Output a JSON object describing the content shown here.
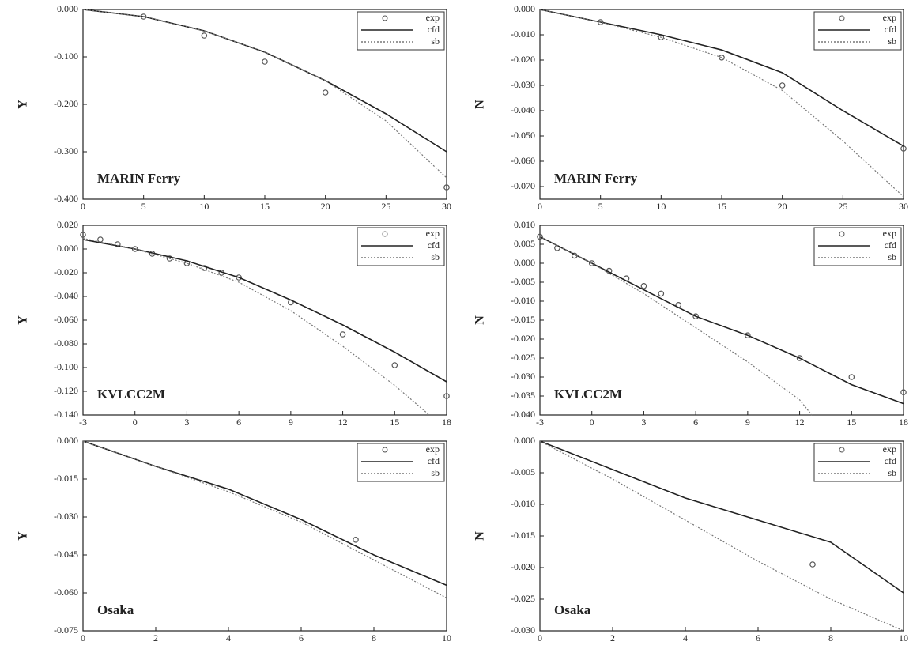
{
  "chart_data": [
    {
      "type": "line",
      "annotation": "MARIN Ferry",
      "ylabel": "Y",
      "xlim": [
        0,
        30
      ],
      "xticks": [
        0,
        5,
        10,
        15,
        20,
        25,
        30
      ],
      "ylim": [
        -0.4,
        0
      ],
      "yticks": [
        {
          "value": 0,
          "label": "0.000"
        },
        {
          "value": -0.1,
          "label": "-0.100"
        },
        {
          "value": -0.2,
          "label": "-0.200"
        },
        {
          "value": -0.3,
          "label": "-0.300"
        },
        {
          "value": -0.4,
          "label": "-0.400"
        }
      ],
      "legend": "upper right",
      "series": [
        {
          "name": "exp",
          "color": "#555555",
          "style": "markers",
          "x": [
            5,
            10,
            15,
            20,
            30
          ],
          "values": [
            -0.015,
            -0.055,
            -0.11,
            -0.175,
            -0.375
          ]
        },
        {
          "name": "cfd",
          "color": "#222222",
          "style": "solid",
          "x": [
            0,
            5,
            10,
            15,
            20,
            25,
            30
          ],
          "values": [
            0,
            -0.015,
            -0.045,
            -0.09,
            -0.15,
            -0.22,
            -0.3
          ]
        },
        {
          "name": "sb",
          "color": "#777777",
          "style": "dotted",
          "x": [
            0,
            5,
            10,
            15,
            20,
            25,
            30
          ],
          "values": [
            0,
            -0.015,
            -0.045,
            -0.09,
            -0.15,
            -0.235,
            -0.355
          ]
        }
      ]
    },
    {
      "type": "line",
      "annotation": "MARIN Ferry",
      "ylabel": "N",
      "xlim": [
        0,
        30
      ],
      "xticks": [
        0,
        5,
        10,
        15,
        20,
        25,
        30
      ],
      "ylim": [
        -0.075,
        0
      ],
      "yticks": [
        {
          "value": 0,
          "label": "0.000"
        },
        {
          "value": -0.01,
          "label": "-0.010"
        },
        {
          "value": -0.02,
          "label": "-0.020"
        },
        {
          "value": -0.03,
          "label": "-0.030"
        },
        {
          "value": -0.04,
          "label": "-0.040"
        },
        {
          "value": -0.05,
          "label": "-0.050"
        },
        {
          "value": -0.06,
          "label": "-0.060"
        },
        {
          "value": -0.07,
          "label": "-0.070"
        }
      ],
      "legend": "upper right",
      "series": [
        {
          "name": "exp",
          "color": "#555555",
          "style": "markers",
          "x": [
            5,
            10,
            15,
            20,
            30
          ],
          "values": [
            -0.005,
            -0.011,
            -0.019,
            -0.03,
            -0.055
          ]
        },
        {
          "name": "cfd",
          "color": "#222222",
          "style": "solid",
          "x": [
            0,
            5,
            10,
            15,
            20,
            25,
            30
          ],
          "values": [
            0,
            -0.005,
            -0.01,
            -0.016,
            -0.025,
            -0.04,
            -0.054
          ]
        },
        {
          "name": "sb",
          "color": "#777777",
          "style": "dotted",
          "x": [
            0,
            5,
            10,
            15,
            20,
            25,
            30
          ],
          "values": [
            0,
            -0.005,
            -0.011,
            -0.019,
            -0.032,
            -0.052,
            -0.074
          ]
        }
      ]
    },
    {
      "type": "line",
      "annotation": "KVLCC2M",
      "ylabel": "Y",
      "xlim": [
        -3,
        18
      ],
      "xticks": [
        -3,
        0,
        3,
        6,
        9,
        12,
        15,
        18
      ],
      "ylim": [
        -0.14,
        0.02
      ],
      "yticks": [
        {
          "value": 0.02,
          "label": "0.020"
        },
        {
          "value": 0,
          "label": "0.000"
        },
        {
          "value": -0.02,
          "label": "-0.020"
        },
        {
          "value": -0.04,
          "label": "-0.040"
        },
        {
          "value": -0.06,
          "label": "-0.060"
        },
        {
          "value": -0.08,
          "label": "-0.080"
        },
        {
          "value": -0.1,
          "label": "-0.100"
        },
        {
          "value": -0.12,
          "label": "-0.120"
        },
        {
          "value": -0.14,
          "label": "-0.140"
        }
      ],
      "legend": "upper right",
      "series": [
        {
          "name": "exp",
          "color": "#555555",
          "style": "markers",
          "x": [
            -3,
            -2,
            -1,
            0,
            1,
            2,
            3,
            4,
            5,
            6,
            9,
            12,
            15,
            18
          ],
          "values": [
            0.012,
            0.008,
            0.004,
            0,
            -0.004,
            -0.008,
            -0.012,
            -0.016,
            -0.02,
            -0.024,
            -0.045,
            -0.072,
            -0.098,
            -0.124
          ]
        },
        {
          "name": "cfd",
          "color": "#222222",
          "style": "solid",
          "x": [
            -3,
            0,
            3,
            6,
            9,
            12,
            15,
            18
          ],
          "values": [
            0.008,
            0,
            -0.01,
            -0.024,
            -0.043,
            -0.064,
            -0.087,
            -0.112
          ]
        },
        {
          "name": "sb",
          "color": "#777777",
          "style": "dotted",
          "x": [
            -3,
            0,
            3,
            6,
            9,
            12,
            15,
            17
          ],
          "values": [
            0.009,
            0,
            -0.012,
            -0.028,
            -0.052,
            -0.082,
            -0.115,
            -0.14
          ]
        }
      ]
    },
    {
      "type": "line",
      "annotation": "KVLCC2M",
      "ylabel": "N",
      "xlim": [
        -3,
        18
      ],
      "xticks": [
        -3,
        0,
        3,
        6,
        9,
        12,
        15,
        18
      ],
      "ylim": [
        -0.04,
        0.01
      ],
      "yticks": [
        {
          "value": 0.01,
          "label": "0.010"
        },
        {
          "value": 0.005,
          "label": "0.005"
        },
        {
          "value": 0,
          "label": "0.000"
        },
        {
          "value": -0.005,
          "label": "-0.005"
        },
        {
          "value": -0.01,
          "label": "-0.010"
        },
        {
          "value": -0.015,
          "label": "-0.015"
        },
        {
          "value": -0.02,
          "label": "-0.020"
        },
        {
          "value": -0.025,
          "label": "-0.025"
        },
        {
          "value": -0.03,
          "label": "-0.030"
        },
        {
          "value": -0.035,
          "label": "-0.035"
        },
        {
          "value": -0.04,
          "label": "-0.040"
        }
      ],
      "legend": "upper right",
      "series": [
        {
          "name": "exp",
          "color": "#555555",
          "style": "markers",
          "x": [
            -3,
            -2,
            -1,
            0,
            1,
            2,
            3,
            4,
            5,
            6,
            9,
            12,
            15,
            18
          ],
          "values": [
            0.007,
            0.004,
            0.002,
            0,
            -0.002,
            -0.004,
            -0.006,
            -0.008,
            -0.011,
            -0.014,
            -0.019,
            -0.025,
            -0.03,
            -0.034
          ]
        },
        {
          "name": "cfd",
          "color": "#222222",
          "style": "solid",
          "x": [
            -3,
            0,
            3,
            6,
            9,
            12,
            15,
            18
          ],
          "values": [
            0.007,
            0,
            -0.007,
            -0.014,
            -0.019,
            -0.025,
            -0.032,
            -0.037
          ]
        },
        {
          "name": "sb",
          "color": "#777777",
          "style": "dotted",
          "x": [
            -3,
            0,
            3,
            6,
            9,
            12,
            12.7
          ],
          "values": [
            0.007,
            0,
            -0.008,
            -0.017,
            -0.026,
            -0.036,
            -0.04
          ]
        }
      ]
    },
    {
      "type": "line",
      "annotation": "Osaka",
      "ylabel": "Y",
      "xlim": [
        0,
        10
      ],
      "xticks": [
        0,
        2,
        4,
        6,
        8,
        10
      ],
      "ylim": [
        -0.075,
        0
      ],
      "yticks": [
        {
          "value": 0,
          "label": "0.000"
        },
        {
          "value": -0.015,
          "label": "-0.015"
        },
        {
          "value": -0.03,
          "label": "-0.030"
        },
        {
          "value": -0.045,
          "label": "-0.045"
        },
        {
          "value": -0.06,
          "label": "-0.060"
        },
        {
          "value": -0.075,
          "label": "-0.075"
        }
      ],
      "legend": "upper right",
      "series": [
        {
          "name": "exp",
          "color": "#555555",
          "style": "markers",
          "x": [
            7.5
          ],
          "values": [
            -0.039
          ]
        },
        {
          "name": "cfd",
          "color": "#222222",
          "style": "solid",
          "x": [
            0,
            2,
            4,
            6,
            8,
            10
          ],
          "values": [
            0,
            -0.01,
            -0.019,
            -0.031,
            -0.045,
            -0.057
          ]
        },
        {
          "name": "sb",
          "color": "#777777",
          "style": "dotted",
          "x": [
            0,
            2,
            4,
            6,
            8,
            10
          ],
          "values": [
            0,
            -0.01,
            -0.02,
            -0.032,
            -0.047,
            -0.062
          ]
        }
      ]
    },
    {
      "type": "line",
      "annotation": "Osaka",
      "ylabel": "N",
      "xlim": [
        0,
        10
      ],
      "xticks": [
        0,
        2,
        4,
        6,
        8,
        10
      ],
      "ylim": [
        -0.03,
        0
      ],
      "yticks": [
        {
          "value": 0,
          "label": "0.000"
        },
        {
          "value": -0.005,
          "label": "-0.005"
        },
        {
          "value": -0.01,
          "label": "-0.010"
        },
        {
          "value": -0.015,
          "label": "-0.015"
        },
        {
          "value": -0.02,
          "label": "-0.020"
        },
        {
          "value": -0.025,
          "label": "-0.025"
        },
        {
          "value": -0.03,
          "label": "-0.030"
        }
      ],
      "legend": "upper right",
      "series": [
        {
          "name": "exp",
          "color": "#555555",
          "style": "markers",
          "x": [
            7.5
          ],
          "values": [
            -0.0195
          ]
        },
        {
          "name": "cfd",
          "color": "#222222",
          "style": "solid",
          "x": [
            0,
            2,
            4,
            6,
            8,
            10
          ],
          "values": [
            0,
            -0.0045,
            -0.009,
            -0.0125,
            -0.016,
            -0.024
          ]
        },
        {
          "name": "sb",
          "color": "#777777",
          "style": "dotted",
          "x": [
            0,
            2,
            4,
            6,
            8,
            10
          ],
          "values": [
            0,
            -0.006,
            -0.0125,
            -0.019,
            -0.025,
            -0.03
          ]
        }
      ]
    }
  ]
}
